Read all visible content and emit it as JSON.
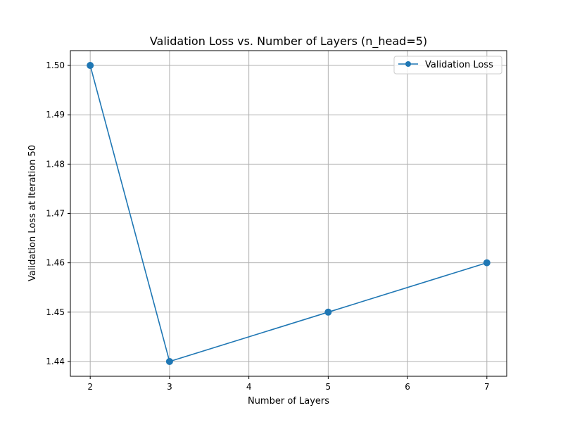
{
  "chart_data": {
    "type": "line",
    "title": "Validation Loss vs. Number of Layers (n_head=5)",
    "xlabel": "Number of Layers",
    "ylabel": "Validation Loss at Iteration 50",
    "x_ticks": [
      2,
      3,
      4,
      5,
      6,
      7
    ],
    "y_ticks": [
      1.44,
      1.45,
      1.46,
      1.47,
      1.48,
      1.49,
      1.5
    ],
    "y_tick_labels": [
      "1.44",
      "1.45",
      "1.46",
      "1.47",
      "1.48",
      "1.49",
      "1.50"
    ],
    "xlim": [
      1.75,
      7.25
    ],
    "ylim": [
      1.437,
      1.503
    ],
    "grid": true,
    "legend_position": "top-right",
    "series": [
      {
        "name": "Validation Loss",
        "color": "#1f77b4",
        "marker": "circle",
        "x": [
          2,
          3,
          5,
          7
        ],
        "y": [
          1.5,
          1.44,
          1.45,
          1.46
        ]
      }
    ]
  }
}
